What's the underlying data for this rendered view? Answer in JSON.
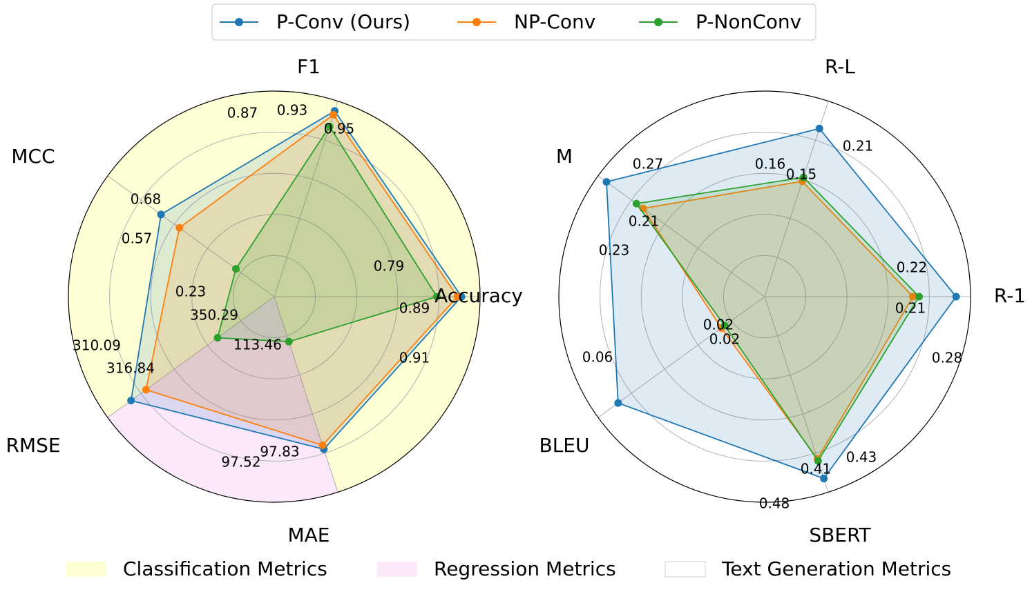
{
  "legend": {
    "series": [
      {
        "name": "P-Conv (Ours)",
        "color": "#1f77b4"
      },
      {
        "name": "NP-Conv",
        "color": "#ff7f0e"
      },
      {
        "name": "P-NonConv",
        "color": "#2ca02c"
      }
    ],
    "categories": [
      {
        "name": "Classification Metrics",
        "color": "#ffffd6"
      },
      {
        "name": "Regression Metrics",
        "color": "#fce8fb"
      },
      {
        "name": "Text Generation Metrics",
        "color": "#ffffff"
      }
    ]
  },
  "chart_data": [
    {
      "type": "radar",
      "axes": [
        "Accuracy",
        "F1",
        "MCC",
        "RMSE",
        "MAE"
      ],
      "axis_angles_deg": [
        0,
        72,
        144,
        216,
        288
      ],
      "radial_max": 1.0,
      "normalized": true,
      "series": [
        {
          "name": "P-Conv (Ours)",
          "values": [
            0.91,
            0.95,
            0.68,
            0.86,
            0.78
          ]
        },
        {
          "name": "NP-Conv",
          "values": [
            0.89,
            0.93,
            0.57,
            0.77,
            0.76
          ]
        },
        {
          "name": "P-NonConv",
          "values": [
            0.79,
            0.87,
            0.23,
            0.34,
            0.23
          ]
        }
      ],
      "data_labels": [
        {
          "axis": "Accuracy",
          "series": "P-Conv (Ours)",
          "text": "0.91"
        },
        {
          "axis": "Accuracy",
          "series": "NP-Conv",
          "text": "0.89"
        },
        {
          "axis": "Accuracy",
          "series": "P-NonConv",
          "text": "0.79"
        },
        {
          "axis": "F1",
          "series": "P-Conv (Ours)",
          "text": "0.95"
        },
        {
          "axis": "F1",
          "series": "NP-Conv",
          "text": "0.93"
        },
        {
          "axis": "F1",
          "series": "P-NonConv",
          "text": "0.87"
        },
        {
          "axis": "MCC",
          "series": "P-Conv (Ours)",
          "text": "0.68"
        },
        {
          "axis": "MCC",
          "series": "NP-Conv",
          "text": "0.57"
        },
        {
          "axis": "MCC",
          "series": "P-NonConv",
          "text": "0.23"
        },
        {
          "axis": "RMSE",
          "series": "P-Conv (Ours)",
          "text": "310.09"
        },
        {
          "axis": "RMSE",
          "series": "NP-Conv",
          "text": "316.84"
        },
        {
          "axis": "RMSE",
          "series": "P-NonConv",
          "text": "350.29"
        },
        {
          "axis": "MAE",
          "series": "P-Conv (Ours)",
          "text": "97.52"
        },
        {
          "axis": "MAE",
          "series": "NP-Conv",
          "text": "97.83"
        },
        {
          "axis": "MAE",
          "series": "P-NonConv",
          "text": "113.46"
        }
      ],
      "background_sectors": [
        {
          "from_deg": 216,
          "to_deg": 288,
          "category": "Regression Metrics"
        },
        {
          "from_deg": 288,
          "to_deg": 576,
          "category": "Classification Metrics"
        }
      ]
    },
    {
      "type": "radar",
      "axes": [
        "R-1",
        "R-L",
        "M",
        "BLEU",
        "SBERT"
      ],
      "axis_angles_deg": [
        0,
        72,
        144,
        216,
        288
      ],
      "radial_max": 1.0,
      "normalized": true,
      "series": [
        {
          "name": "P-Conv (Ours)",
          "values": [
            0.93,
            0.86,
            0.95,
            0.88,
            0.93
          ]
        },
        {
          "name": "NP-Conv",
          "values": [
            0.72,
            0.59,
            0.73,
            0.26,
            0.83
          ]
        },
        {
          "name": "P-NonConv",
          "values": [
            0.75,
            0.61,
            0.77,
            0.24,
            0.84
          ]
        }
      ],
      "data_labels": [
        {
          "axis": "R-1",
          "series": "P-Conv (Ours)",
          "text": "0.28"
        },
        {
          "axis": "R-1",
          "series": "NP-Conv",
          "text": "0.21"
        },
        {
          "axis": "R-1",
          "series": "P-NonConv",
          "text": "0.22"
        },
        {
          "axis": "R-L",
          "series": "P-Conv (Ours)",
          "text": "0.21"
        },
        {
          "axis": "R-L",
          "series": "NP-Conv",
          "text": "0.15"
        },
        {
          "axis": "R-L",
          "series": "P-NonConv",
          "text": "0.16"
        },
        {
          "axis": "M",
          "series": "P-Conv (Ours)",
          "text": "0.27"
        },
        {
          "axis": "M",
          "series": "NP-Conv",
          "text": "0.21"
        },
        {
          "axis": "M",
          "series": "P-NonConv",
          "text": "0.23"
        },
        {
          "axis": "BLEU",
          "series": "P-Conv (Ours)",
          "text": "0.06"
        },
        {
          "axis": "BLEU",
          "series": "NP-Conv",
          "text": "0.02"
        },
        {
          "axis": "BLEU",
          "series": "P-NonConv",
          "text": "0.02"
        },
        {
          "axis": "SBERT",
          "series": "P-Conv (Ours)",
          "text": "0.48"
        },
        {
          "axis": "SBERT",
          "series": "NP-Conv",
          "text": "0.41"
        },
        {
          "axis": "SBERT",
          "series": "P-NonConv",
          "text": "0.43"
        }
      ],
      "background_sectors": [
        {
          "from_deg": 0,
          "to_deg": 360,
          "category": "Text Generation Metrics"
        }
      ]
    }
  ]
}
